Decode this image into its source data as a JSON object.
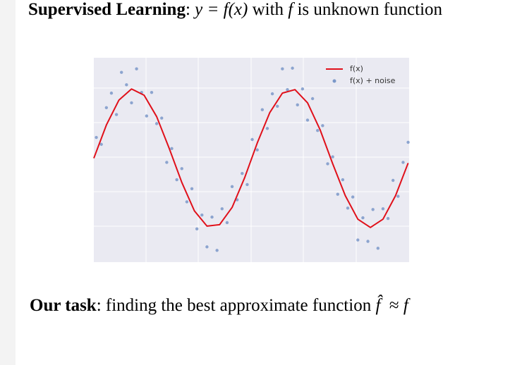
{
  "slide": {
    "heading": {
      "bold": "Supervised Learning",
      "sep": ":",
      "formula": "y = f(x)",
      "with": "with",
      "f": "f",
      "rest": "is unknown function"
    },
    "task": {
      "bold": "Our task",
      "text": ": finding the best approximate function",
      "fhat": "f̂",
      "approx": "≈",
      "f": "f"
    }
  },
  "chart_data": {
    "type": "line",
    "legend": "upper right",
    "grid": true,
    "xlim": [
      0,
      12.54
    ],
    "ylim": [
      -1.5,
      1.45
    ],
    "series": [
      {
        "name": "f(x)",
        "type": "line",
        "color": "#e0101a",
        "x": [
          0,
          0.5,
          1,
          1.5,
          2,
          2.5,
          3,
          3.5,
          4,
          4.5,
          5,
          5.5,
          6,
          6.5,
          7,
          7.5,
          8,
          8.5,
          9,
          9.5,
          10,
          10.5,
          11,
          11.5,
          12,
          12.5
        ],
        "values": [
          0,
          0.48,
          0.84,
          1.0,
          0.91,
          0.6,
          0.14,
          -0.35,
          -0.76,
          -0.98,
          -0.96,
          -0.71,
          -0.28,
          0.22,
          0.66,
          0.94,
          0.99,
          0.8,
          0.41,
          -0.08,
          -0.54,
          -0.88,
          -1.0,
          -0.88,
          -0.54,
          -0.07
        ]
      },
      {
        "name": "f(x) + noise",
        "type": "scatter",
        "color": "#7b98c9",
        "x": [
          0.1,
          0.3,
          0.5,
          0.7,
          0.9,
          1.1,
          1.3,
          1.5,
          1.7,
          1.9,
          2.1,
          2.3,
          2.5,
          2.7,
          2.9,
          3.1,
          3.3,
          3.5,
          3.7,
          3.9,
          4.1,
          4.3,
          4.5,
          4.7,
          4.9,
          5.1,
          5.3,
          5.5,
          5.7,
          5.9,
          6.1,
          6.3,
          6.5,
          6.7,
          6.9,
          7.1,
          7.3,
          7.5,
          7.7,
          7.9,
          8.1,
          8.3,
          8.5,
          8.7,
          8.9,
          9.1,
          9.3,
          9.5,
          9.7,
          9.9,
          10.1,
          10.3,
          10.5,
          10.7,
          10.9,
          11.1,
          11.3,
          11.5,
          11.7,
          11.9,
          12.1,
          12.3,
          12.5
        ],
        "values": [
          0.3,
          0.2,
          0.73,
          0.94,
          0.63,
          1.24,
          1.06,
          0.8,
          1.29,
          0.95,
          0.61,
          0.95,
          0.5,
          0.58,
          -0.06,
          0.14,
          -0.31,
          -0.15,
          -0.63,
          -0.44,
          -1.02,
          -0.82,
          -1.28,
          -0.85,
          -1.33,
          -0.73,
          -0.93,
          -0.41,
          -0.6,
          -0.22,
          -0.38,
          0.27,
          0.12,
          0.7,
          0.43,
          0.93,
          0.75,
          1.29,
          0.99,
          1.3,
          0.77,
          1.0,
          0.55,
          0.86,
          0.4,
          0.47,
          -0.08,
          0.02,
          -0.52,
          -0.31,
          -0.72,
          -0.56,
          -1.18,
          -0.86,
          -1.2,
          -0.74,
          -1.3,
          -0.73,
          -0.87,
          -0.32,
          -0.55,
          -0.06,
          0.23
        ]
      }
    ]
  }
}
